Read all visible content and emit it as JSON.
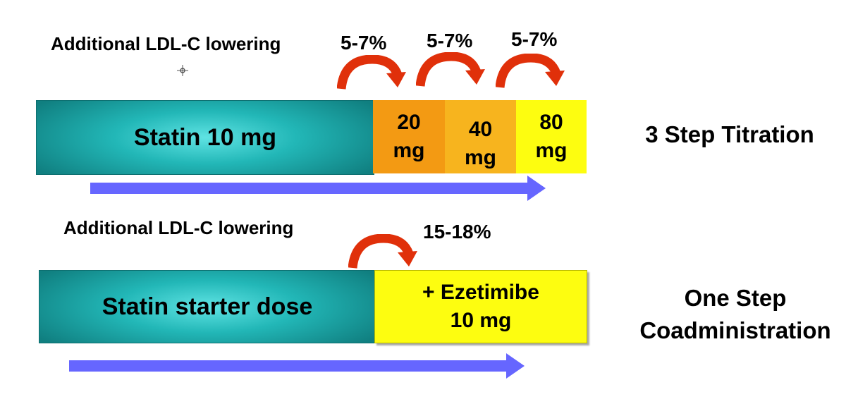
{
  "top": {
    "additional_label": "Additional LDL-C lowering",
    "increments": [
      "5-7%",
      "5-7%",
      "5-7%"
    ],
    "base_bar": "Statin 10 mg",
    "doses": [
      {
        "value": "20",
        "unit": "mg"
      },
      {
        "value": "40",
        "unit": "mg"
      },
      {
        "value": "80",
        "unit": "mg"
      }
    ],
    "side_label": "3 Step Titration"
  },
  "bottom": {
    "additional_label": "Additional LDL-C lowering",
    "increment": "15-18%",
    "base_bar": "Statin starter dose",
    "addon_line1": "+ Ezetimibe",
    "addon_line2": "10 mg",
    "side_label_line1": "One Step",
    "side_label_line2": "Coadministration"
  },
  "colors": {
    "teal": "#22b7b7",
    "orange": "#f39a13",
    "orange_light": "#f7b41e",
    "yellow": "#fdfd10",
    "curve_arrow": "#e0300a",
    "progress_arrow": "#6666ff"
  }
}
